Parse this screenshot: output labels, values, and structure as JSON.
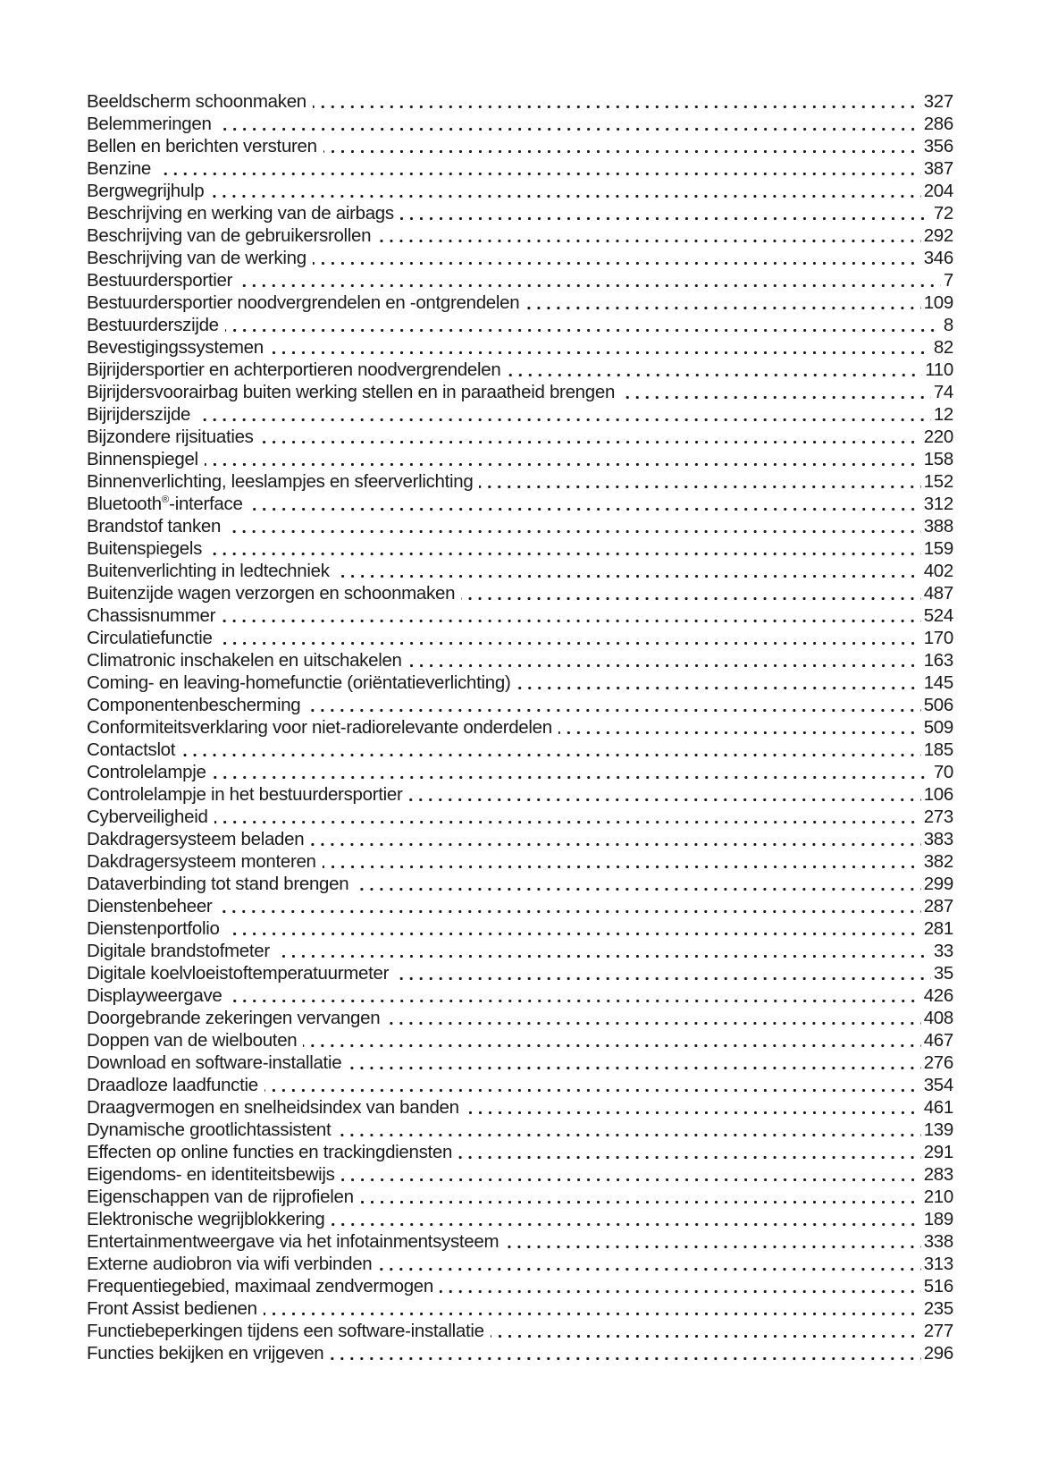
{
  "document": {
    "type": "index-table-of-contents",
    "language": "nl",
    "text_color": "#1a1a1a",
    "background_color": "#ffffff"
  },
  "toc": {
    "entries": [
      {
        "title": "Beeldscherm schoonmaken",
        "page": "327"
      },
      {
        "title": "Belemmeringen",
        "page": "286"
      },
      {
        "title": "Bellen en berichten versturen",
        "page": "356"
      },
      {
        "title": "Benzine",
        "page": "387"
      },
      {
        "title": "Bergwegrijhulp",
        "page": "204"
      },
      {
        "title": "Beschrijving en werking van de airbags",
        "page": "72"
      },
      {
        "title": "Beschrijving van de gebruikersrollen",
        "page": "292"
      },
      {
        "title": "Beschrijving van de werking",
        "page": "346"
      },
      {
        "title": "Bestuurdersportier",
        "page": "7"
      },
      {
        "title": "Bestuurdersportier noodvergrendelen en -ontgrendelen",
        "page": "109"
      },
      {
        "title": "Bestuurderszijde",
        "page": "8"
      },
      {
        "title": "Bevestigingssystemen",
        "page": "82"
      },
      {
        "title": "Bijrijdersportier en achterportieren noodvergrendelen",
        "page": "110"
      },
      {
        "title": "Bijrijdersvoorairbag buiten werking stellen en in paraatheid brengen",
        "page": "74"
      },
      {
        "title": "Bijrijderszijde",
        "page": "12"
      },
      {
        "title": "Bijzondere rijsituaties",
        "page": "220"
      },
      {
        "title": "Binnenspiegel",
        "page": "158"
      },
      {
        "title": "Binnenverlichting, leeslampjes en sfeerverlichting",
        "page": "152"
      },
      {
        "title": "Bluetooth®-interface",
        "page": "312"
      },
      {
        "title": "Brandstof tanken",
        "page": "388"
      },
      {
        "title": "Buitenspiegels",
        "page": "159"
      },
      {
        "title": "Buitenverlichting in ledtechniek",
        "page": "402"
      },
      {
        "title": "Buitenzijde wagen verzorgen en schoonmaken",
        "page": "487"
      },
      {
        "title": "Chassisnummer",
        "page": "524"
      },
      {
        "title": "Circulatiefunctie",
        "page": "170"
      },
      {
        "title": "Climatronic inschakelen en uitschakelen",
        "page": "163"
      },
      {
        "title": "Coming- en leaving-homefunctie (oriëntatieverlichting)",
        "page": "145"
      },
      {
        "title": "Componentenbescherming",
        "page": "506"
      },
      {
        "title": "Conformiteitsverklaring voor niet-radiorelevante onderdelen",
        "page": "509"
      },
      {
        "title": "Contactslot",
        "page": "185"
      },
      {
        "title": "Controlelampje",
        "page": "70"
      },
      {
        "title": "Controlelampje in het bestuurdersportier",
        "page": "106"
      },
      {
        "title": "Cyberveiligheid",
        "page": "273"
      },
      {
        "title": "Dakdragersysteem beladen",
        "page": "383"
      },
      {
        "title": "Dakdragersysteem monteren",
        "page": "382"
      },
      {
        "title": "Dataverbinding tot stand brengen",
        "page": "299"
      },
      {
        "title": "Dienstenbeheer",
        "page": "287"
      },
      {
        "title": "Dienstenportfolio",
        "page": "281"
      },
      {
        "title": "Digitale brandstofmeter",
        "page": "33"
      },
      {
        "title": "Digitale koelvloeistoftemperatuurmeter",
        "page": "35"
      },
      {
        "title": "Displayweergave",
        "page": "426"
      },
      {
        "title": "Doorgebrande zekeringen vervangen",
        "page": "408"
      },
      {
        "title": "Doppen van de wielbouten",
        "page": "467"
      },
      {
        "title": "Download en software-installatie",
        "page": "276"
      },
      {
        "title": "Draadloze laadfunctie",
        "page": "354"
      },
      {
        "title": "Draagvermogen en snelheidsindex van banden",
        "page": "461"
      },
      {
        "title": "Dynamische grootlichtassistent",
        "page": "139"
      },
      {
        "title": "Effecten op online functies en trackingdiensten",
        "page": "291"
      },
      {
        "title": "Eigendoms- en identiteitsbewijs",
        "page": "283"
      },
      {
        "title": "Eigenschappen van de rijprofielen",
        "page": "210"
      },
      {
        "title": "Elektronische wegrijblokkering",
        "page": "189"
      },
      {
        "title": "Entertainmentweergave via het infotainmentsysteem",
        "page": "338"
      },
      {
        "title": "Externe audiobron via wifi verbinden",
        "page": "313"
      },
      {
        "title": "Frequentiegebied, maximaal zendvermogen",
        "page": "516"
      },
      {
        "title": "Front Assist bedienen",
        "page": "235"
      },
      {
        "title": "Functiebeperkingen tijdens een software-installatie",
        "page": "277"
      },
      {
        "title": "Functies bekijken en vrijgeven",
        "page": "296"
      }
    ]
  }
}
